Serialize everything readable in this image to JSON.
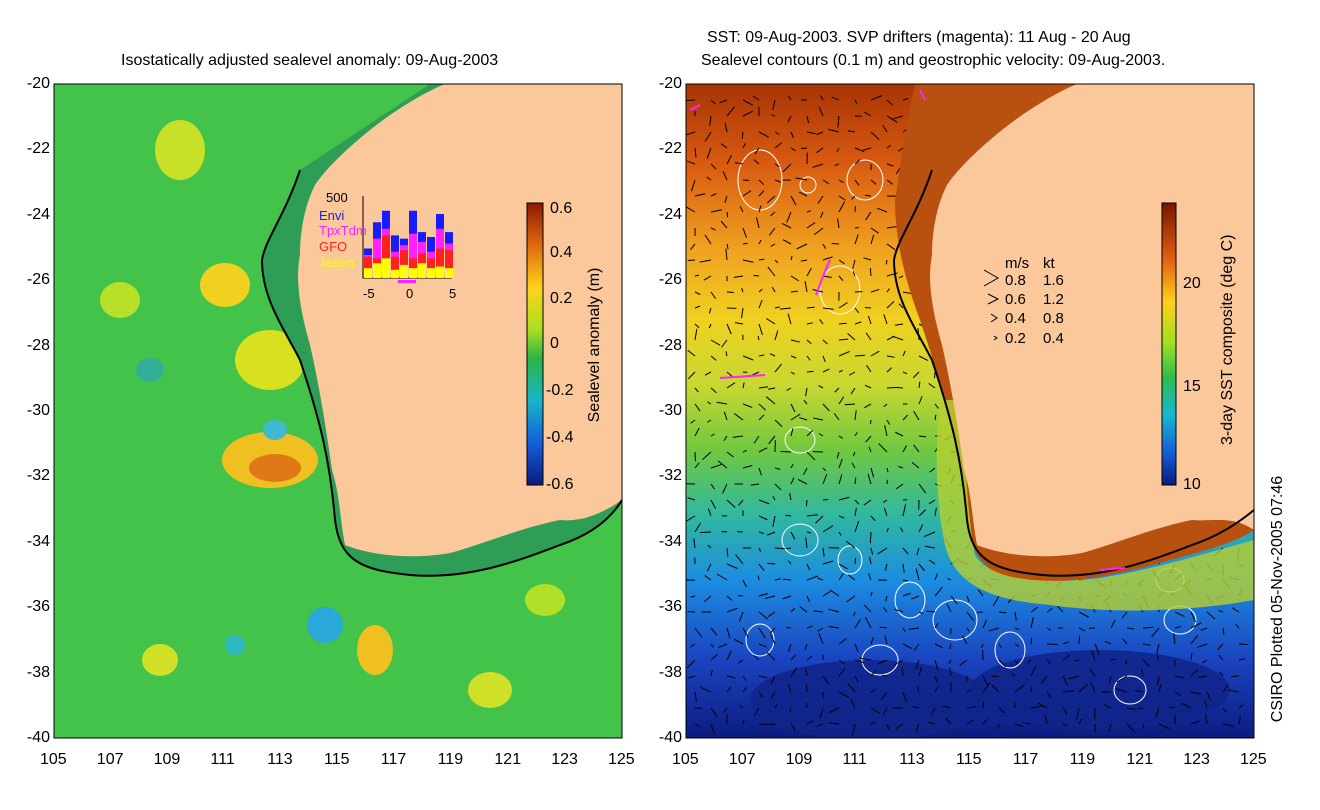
{
  "left_panel": {
    "title": "Isostatically adjusted sealevel anomaly: 09-Aug-2003",
    "colorbar": {
      "label": "Sealevel anomaly (m)",
      "ticks": [
        "0.6",
        "0.4",
        "0.2",
        "0",
        "-0.2",
        "-0.4",
        "-0.6"
      ]
    },
    "inset": {
      "ymax_label": "500",
      "legend": [
        {
          "name": "Envi",
          "color": "#1a1aff"
        },
        {
          "name": "TpxTdm",
          "color": "#ff22ff"
        },
        {
          "name": "GFO",
          "color": "#ff2020"
        },
        {
          "name": "Jason",
          "color": "#ffff00"
        }
      ],
      "xticks": [
        "-5",
        "0",
        "5"
      ],
      "bars": [
        {
          "jason": 60,
          "gfo": 130,
          "tpx": 140,
          "envi": 180
        },
        {
          "jason": 90,
          "gfo": 120,
          "tpx": 240,
          "envi": 340
        },
        {
          "jason": 120,
          "gfo": 260,
          "tpx": 300,
          "envi": 410
        },
        {
          "jason": 50,
          "gfo": 130,
          "tpx": 160,
          "envi": 260
        },
        {
          "jason": 80,
          "gfo": 170,
          "tpx": 200,
          "envi": 240
        },
        {
          "jason": 60,
          "gfo": 120,
          "tpx": 270,
          "envi": 410
        },
        {
          "jason": 90,
          "gfo": 150,
          "tpx": 220,
          "envi": 280
        },
        {
          "jason": 60,
          "gfo": 120,
          "tpx": 160,
          "envi": 250
        },
        {
          "jason": 70,
          "gfo": 180,
          "tpx": 300,
          "envi": 390
        },
        {
          "jason": 60,
          "gfo": 170,
          "tpx": 210,
          "envi": 280
        }
      ]
    }
  },
  "right_panel": {
    "title_line1": "SST: 09-Aug-2003. SVP drifters (magenta): 11 Aug - 20 Aug",
    "title_line2": "Sealevel contours (0.1 m) and geostrophic velocity: 09-Aug-2003.",
    "colorbar": {
      "label": "3-day SST composite (deg C)",
      "ticks": [
        "20",
        "15",
        "10"
      ]
    },
    "velocity_legend": {
      "header_ms": "m/s",
      "header_kt": "kt",
      "rows": [
        {
          "ms": "0.8",
          "kt": "1.6"
        },
        {
          "ms": "0.6",
          "kt": "1.2"
        },
        {
          "ms": "0.4",
          "kt": "0.8"
        },
        {
          "ms": "0.2",
          "kt": "0.4"
        }
      ]
    }
  },
  "axes": {
    "lat_ticks": [
      "-20",
      "-22",
      "-24",
      "-26",
      "-28",
      "-30",
      "-32",
      "-34",
      "-36",
      "-38",
      "-40"
    ],
    "lon_ticks": [
      "105",
      "107",
      "109",
      "111",
      "113",
      "115",
      "117",
      "119",
      "121",
      "123",
      "125"
    ]
  },
  "credit": "CSIRO Plotted 05-Nov-2005 07:46",
  "colors": {
    "land": "#fbc89c",
    "coast": "#000000",
    "sla_background": "#44c34a",
    "sst_warm": "#c0400a",
    "sst_cool": "#1040b0"
  }
}
